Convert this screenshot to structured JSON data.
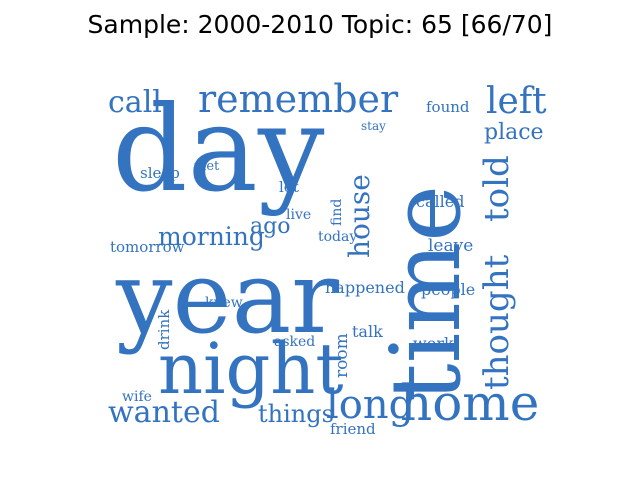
{
  "title": "Sample: 2000-2010 Topic: 65 [66/70]",
  "colors": {
    "word": "#3373c0",
    "background": "#ffffff"
  },
  "words": {
    "day": "day",
    "year": "year",
    "time": "time",
    "night": "night",
    "home": "home",
    "long": "long",
    "remember": "remember",
    "call": "call",
    "left": "left",
    "place": "place",
    "found": "found",
    "stay": "stay",
    "house": "house",
    "thought": "thought",
    "told": "told",
    "morning": "morning",
    "ago": "ago",
    "tomorrow": "tomorrow",
    "sleep": "sleep",
    "met": "met",
    "lot": "lot",
    "live": "live",
    "find": "find",
    "today": "today",
    "called": "called",
    "leave": "leave",
    "happened": "happened",
    "people": "people",
    "knew": "knew",
    "drink": "drink",
    "room": "room",
    "talk": "talk",
    "asked": "asked",
    "work": "work",
    "wife": "wife",
    "wanted": "wanted",
    "things": "things",
    "friend": "friend"
  }
}
